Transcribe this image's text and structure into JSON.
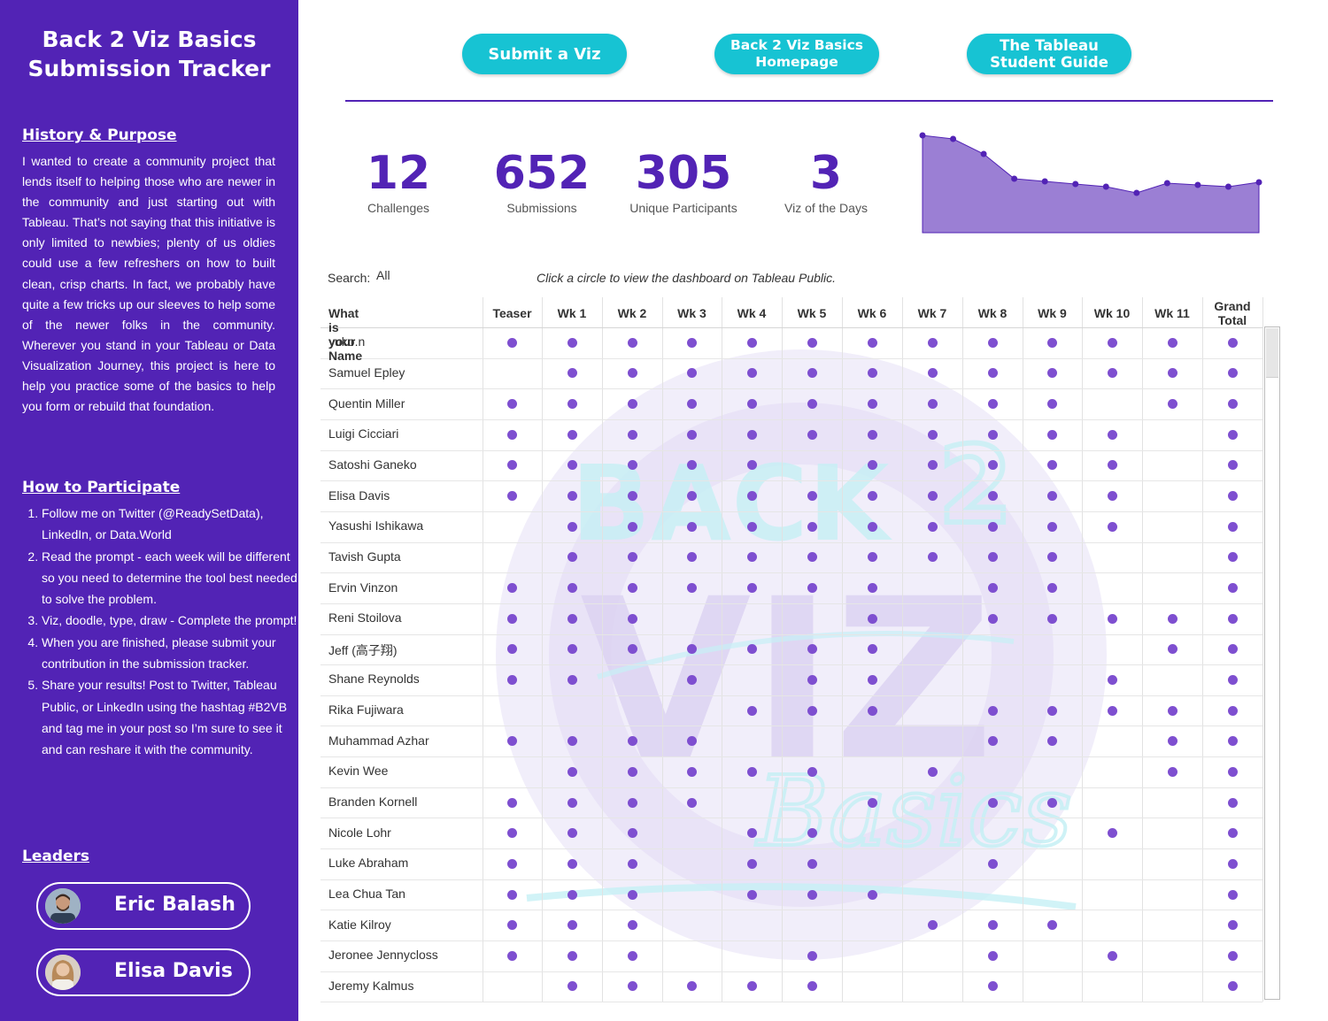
{
  "sidebar": {
    "title_line1": "Back 2 Viz Basics",
    "title_line2": "Submission Tracker",
    "history_heading": "History & Purpose",
    "history_text": "I wanted to create a community project that lends itself to helping those who are newer in the community and just starting out with Tableau. That’s not saying that this initiative is only limited to newbies; plenty of us oldies could use a few refreshers on how to built clean, crisp charts. In fact, we probably have quite a few tricks up our sleeves to help some of the newer folks in the community. Wherever you stand in your Tableau or Data Visualization Journey, this project is here to help you practice some of the basics to help you form or rebuild that foundation.",
    "participate_heading": "How to Participate",
    "steps": [
      "Follow me on Twitter (@ReadySetData), LinkedIn, or Data.World",
      "Read the prompt - each week will be different so you need to determine the tool best needed to solve the problem.",
      "Viz, doodle, type, draw - Complete the prompt!",
      "When you are finished, please submit your contribution in the submission tracker.",
      "Share your results! Post to Twitter, Tableau Public, or LinkedIn using the hashtag #B2VB and tag me in your post so I’m sure to see it and can reshare it with the community."
    ],
    "leaders_heading": "Leaders",
    "leaders": [
      "Eric Balash",
      "Elisa Davis"
    ]
  },
  "buttons": {
    "submit": "Submit a Viz",
    "homepage_line1": "Back 2 Viz Basics",
    "homepage_line2": "Homepage",
    "guide_line1": "The Tableau",
    "guide_line2": "Student Guide"
  },
  "kpis": [
    {
      "value": "12",
      "label": "Challenges"
    },
    {
      "value": "652",
      "label": "Submissions"
    },
    {
      "value": "305",
      "label": "Unique Participants"
    },
    {
      "value": "3",
      "label": "Viz of the Days"
    }
  ],
  "sparkline": {
    "values": [
      100,
      96,
      79,
      51,
      48,
      45,
      42,
      35,
      46,
      44,
      42,
      47
    ],
    "fill": "#9b7fd4",
    "line": "#5223b5"
  },
  "search": {
    "label": "Search:",
    "value": "All"
  },
  "hint": "Click a circle to view the dashboard on Tableau Public.",
  "table": {
    "name_header": "What is your Name",
    "columns": [
      "Teaser",
      "Wk 1",
      "Wk 2",
      "Wk 3",
      "Wk 4",
      "Wk 5",
      "Wk 6",
      "Wk 7",
      "Wk 8",
      "Wk 9",
      "Wk 10",
      "Wk 11"
    ],
    "total_line1": "Grand",
    "total_line2": "Total",
    "rows": [
      {
        "name": "yuko.n",
        "marks": [
          1,
          1,
          1,
          1,
          1,
          1,
          1,
          1,
          1,
          1,
          1,
          1,
          1
        ]
      },
      {
        "name": "Samuel Epley",
        "marks": [
          0,
          1,
          1,
          1,
          1,
          1,
          1,
          1,
          1,
          1,
          1,
          1,
          1
        ]
      },
      {
        "name": "Quentin Miller",
        "marks": [
          1,
          1,
          1,
          1,
          1,
          1,
          1,
          1,
          1,
          1,
          0,
          1,
          1
        ]
      },
      {
        "name": "Luigi Cicciari",
        "marks": [
          1,
          1,
          1,
          1,
          1,
          1,
          1,
          1,
          1,
          1,
          1,
          0,
          1
        ]
      },
      {
        "name": "Satoshi Ganeko",
        "marks": [
          1,
          1,
          1,
          1,
          1,
          0,
          1,
          1,
          1,
          1,
          1,
          0,
          1
        ]
      },
      {
        "name": "Elisa Davis",
        "marks": [
          1,
          1,
          1,
          1,
          1,
          1,
          1,
          1,
          1,
          1,
          1,
          0,
          1
        ]
      },
      {
        "name": "Yasushi Ishikawa",
        "marks": [
          0,
          1,
          1,
          1,
          1,
          1,
          1,
          1,
          1,
          1,
          1,
          0,
          1
        ]
      },
      {
        "name": "Tavish Gupta",
        "marks": [
          0,
          1,
          1,
          1,
          1,
          1,
          1,
          1,
          1,
          1,
          0,
          0,
          1
        ]
      },
      {
        "name": "Ervin Vinzon",
        "marks": [
          1,
          1,
          1,
          1,
          1,
          1,
          1,
          0,
          1,
          1,
          0,
          0,
          1
        ]
      },
      {
        "name": "Reni Stoilova",
        "marks": [
          1,
          1,
          1,
          0,
          0,
          0,
          1,
          0,
          1,
          1,
          1,
          1,
          1
        ]
      },
      {
        "name": "Jeff (高子翔)",
        "marks": [
          1,
          1,
          1,
          1,
          1,
          1,
          1,
          0,
          0,
          0,
          0,
          1,
          1
        ]
      },
      {
        "name": "Shane Reynolds",
        "marks": [
          1,
          1,
          0,
          1,
          0,
          1,
          1,
          0,
          0,
          0,
          1,
          0,
          1
        ]
      },
      {
        "name": "Rika Fujiwara",
        "marks": [
          0,
          0,
          0,
          0,
          1,
          1,
          1,
          0,
          1,
          1,
          1,
          1,
          1
        ]
      },
      {
        "name": "Muhammad Azhar",
        "marks": [
          1,
          1,
          1,
          1,
          0,
          0,
          0,
          0,
          1,
          1,
          0,
          1,
          1
        ]
      },
      {
        "name": "Kevin Wee",
        "marks": [
          0,
          1,
          1,
          1,
          1,
          1,
          0,
          1,
          0,
          0,
          0,
          1,
          1
        ]
      },
      {
        "name": "Branden Kornell",
        "marks": [
          1,
          1,
          1,
          1,
          0,
          0,
          1,
          0,
          1,
          1,
          0,
          0,
          1
        ]
      },
      {
        "name": "Nicole Lohr",
        "marks": [
          1,
          1,
          1,
          0,
          1,
          1,
          0,
          0,
          0,
          0,
          1,
          0,
          1
        ]
      },
      {
        "name": "Luke Abraham",
        "marks": [
          1,
          1,
          1,
          0,
          1,
          1,
          0,
          0,
          1,
          0,
          0,
          0,
          1
        ]
      },
      {
        "name": "Lea Chua Tan",
        "marks": [
          1,
          1,
          1,
          0,
          1,
          1,
          1,
          0,
          0,
          0,
          0,
          0,
          1
        ]
      },
      {
        "name": "Katie Kilroy",
        "marks": [
          1,
          1,
          1,
          0,
          0,
          0,
          0,
          1,
          1,
          1,
          0,
          0,
          1
        ]
      },
      {
        "name": "Jeronee Jennycloss",
        "marks": [
          1,
          1,
          1,
          0,
          0,
          1,
          0,
          0,
          1,
          0,
          1,
          0,
          1
        ]
      },
      {
        "name": "Jeremy Kalmus",
        "marks": [
          0,
          1,
          1,
          1,
          1,
          1,
          0,
          0,
          1,
          0,
          0,
          0,
          1
        ]
      }
    ]
  },
  "colors": {
    "brand_purple": "#5223b5",
    "accent_teal": "#17c3d3",
    "dot": "#7e4fd0"
  },
  "icons": {
    "watermark": "back2vizbasics-logo",
    "avatar": "user-photo-avatar"
  }
}
